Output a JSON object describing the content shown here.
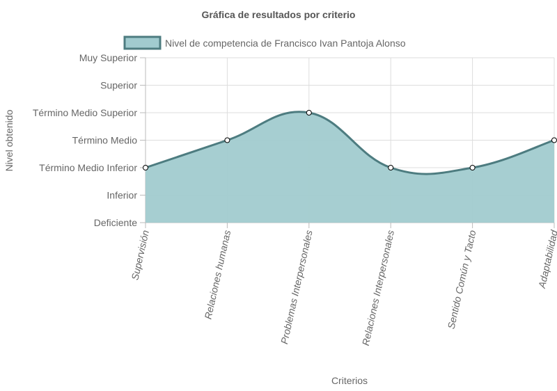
{
  "chart_data": {
    "type": "area",
    "title": "Gráfica de resultados por criterio",
    "xlabel": "Criterios",
    "ylabel": "Nivel obtenido",
    "categories": [
      "Supervisión",
      "Relaciones humanas",
      "Problemas Interpersonales",
      "Relaciones Interpersonales",
      "Sentido Común y Tacto",
      "Adaptabilidad"
    ],
    "y_levels": [
      "Deficiente",
      "Inferior",
      "Término Medio Inferior",
      "Término Medio",
      "Término Medio Superior",
      "Superior",
      "Muy Superior"
    ],
    "ylim": [
      0,
      6
    ],
    "series": [
      {
        "name": "Nivel de competencia de Francisco Ivan Pantoja Alonso",
        "values": [
          2,
          3,
          4,
          2,
          2,
          3
        ]
      }
    ],
    "fill_color": "#a1cbcf",
    "line_color": "#4d7c80",
    "grid": true,
    "legend_position": "top"
  }
}
